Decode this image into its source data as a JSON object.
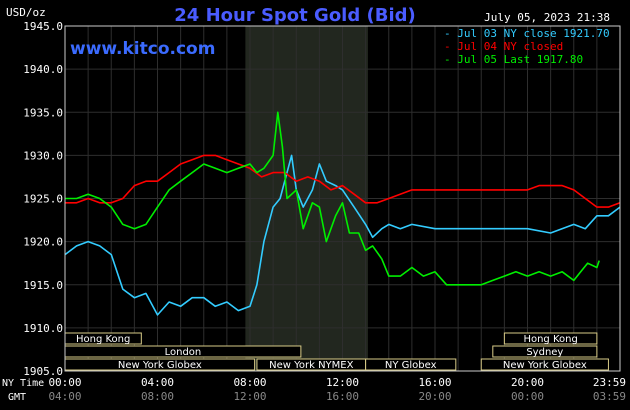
{
  "chart_data": {
    "type": "line",
    "title": "24 Hour Spot Gold (Bid)",
    "website": "www.kitco.com",
    "timestamp": "July 05, 2023 21:38",
    "ylabel": "USD/oz",
    "ylim": [
      1905,
      1945
    ],
    "yticks": [
      "1945.0",
      "1940.0",
      "1935.0",
      "1930.0",
      "1925.0",
      "1920.0",
      "1915.0",
      "1910.0",
      "1905.0"
    ],
    "xlim": [
      0,
      24
    ],
    "x_axis_label_top": "NY Time",
    "x_axis_label_bottom": "GMT",
    "xticks_ny": [
      "00:00",
      "04:00",
      "08:00",
      "12:00",
      "16:00",
      "20:00",
      "23:59"
    ],
    "xticks_gmt": [
      "04:00",
      "08:00",
      "12:00",
      "16:00",
      "20:00",
      "00:00",
      "03:59"
    ],
    "legend": [
      {
        "label": "Jul 03 NY close 1921.70",
        "color": "#33ccff"
      },
      {
        "label": "Jul 04 NY closed",
        "color": "#ff0000"
      },
      {
        "label": "Jul 05 Last 1917.80",
        "color": "#00ee00"
      }
    ],
    "highlight_hours": [
      7.8,
      13.1
    ],
    "sessions_row1": [
      {
        "label": "Hong Kong",
        "start": 0,
        "end": 3.3
      },
      {
        "label": "Hong Kong",
        "start": 19.0,
        "end": 23.0
      }
    ],
    "sessions_row2": [
      {
        "label": "London",
        "start": 0,
        "end": 10.2
      },
      {
        "label": "Sydney",
        "start": 18.5,
        "end": 23.0
      }
    ],
    "sessions_row3": [
      {
        "label": "New York Globex",
        "start": 0,
        "end": 8.2
      },
      {
        "label": "New York NYMEX",
        "start": 8.3,
        "end": 13.0
      },
      {
        "label": "NY Globex",
        "start": 13.0,
        "end": 16.9
      },
      {
        "label": "New York Globex",
        "start": 18.0,
        "end": 23.5
      }
    ],
    "series": [
      {
        "name": "Jul 03 NY close 1921.70",
        "color": "#33ccff",
        "x": [
          0,
          0.5,
          1,
          1.5,
          2,
          2.5,
          3,
          3.5,
          4,
          4.5,
          5,
          5.5,
          6,
          6.5,
          7,
          7.5,
          8,
          8.3,
          8.6,
          9,
          9.3,
          9.5,
          9.8,
          10,
          10.3,
          10.7,
          11,
          11.3,
          11.7,
          12,
          12.5,
          13,
          13.3,
          13.7,
          14,
          14.5,
          15,
          16,
          17,
          18,
          19,
          20,
          21,
          22,
          22.5,
          23,
          23.5,
          24
        ],
        "y": [
          1918.5,
          1919.5,
          1920,
          1919.5,
          1918.5,
          1914.5,
          1913.5,
          1914,
          1911.5,
          1913,
          1912.5,
          1913.5,
          1913.5,
          1912.5,
          1913,
          1912,
          1912.5,
          1915,
          1920,
          1924,
          1925,
          1927,
          1930,
          1926,
          1924,
          1926,
          1929,
          1927,
          1926.5,
          1926,
          1924,
          1922,
          1920.5,
          1921.5,
          1922,
          1921.5,
          1922,
          1921.5,
          1921.5,
          1921.5,
          1921.5,
          1921.5,
          1921,
          1922,
          1921.5,
          1923,
          1923,
          1924
        ]
      },
      {
        "name": "Jul 04 NY closed",
        "color": "#ff0000",
        "x": [
          0,
          0.5,
          1,
          1.5,
          2,
          2.5,
          3,
          3.5,
          4,
          4.5,
          5,
          5.5,
          6,
          6.5,
          7,
          7.5,
          8,
          8.5,
          9,
          9.5,
          10,
          10.5,
          11,
          11.5,
          12,
          12.5,
          13,
          13.5,
          14,
          15,
          16,
          17,
          18,
          19,
          20,
          20.5,
          21,
          21.5,
          22,
          22.5,
          23,
          23.5,
          24
        ],
        "y": [
          1924.5,
          1924.5,
          1925,
          1924.5,
          1924.5,
          1925,
          1926.5,
          1927,
          1927,
          1928,
          1929,
          1929.5,
          1930,
          1930,
          1929.5,
          1929,
          1928.5,
          1927.5,
          1928,
          1928,
          1927,
          1927.5,
          1927,
          1926,
          1926.5,
          1925.5,
          1924.5,
          1924.5,
          1925,
          1926,
          1926,
          1926,
          1926,
          1926,
          1926,
          1926.5,
          1926.5,
          1926.5,
          1926,
          1925,
          1924,
          1924,
          1924.5
        ]
      },
      {
        "name": "Jul 05 Last 1917.80",
        "color": "#00ee00",
        "x": [
          0,
          0.5,
          1,
          1.5,
          2,
          2.5,
          3,
          3.5,
          4,
          4.5,
          5,
          5.5,
          6,
          6.5,
          7,
          7.5,
          8,
          8.3,
          8.6,
          9,
          9.2,
          9.4,
          9.6,
          10,
          10.3,
          10.7,
          11,
          11.3,
          11.7,
          12,
          12.3,
          12.7,
          13,
          13.3,
          13.7,
          14,
          14.5,
          15,
          15.5,
          16,
          16.5,
          17,
          17.5,
          18,
          18.5,
          19,
          19.5,
          20,
          20.5,
          21,
          21.5,
          22,
          22.3,
          22.6,
          23,
          23.1
        ],
        "y": [
          1925,
          1925,
          1925.5,
          1925,
          1924,
          1922,
          1921.5,
          1922,
          1924,
          1926,
          1927,
          1928,
          1929,
          1928.5,
          1928,
          1928.5,
          1929,
          1928,
          1928.5,
          1930,
          1935,
          1931,
          1925,
          1926,
          1921.5,
          1924.5,
          1924,
          1920,
          1923,
          1924.5,
          1921,
          1921,
          1919,
          1919.5,
          1918,
          1916,
          1916,
          1917,
          1916,
          1916.5,
          1915,
          1915,
          1915,
          1915,
          1915.5,
          1916,
          1916.5,
          1916,
          1916.5,
          1916,
          1916.5,
          1915.5,
          1916.5,
          1917.5,
          1917,
          1917.8
        ]
      }
    ]
  }
}
